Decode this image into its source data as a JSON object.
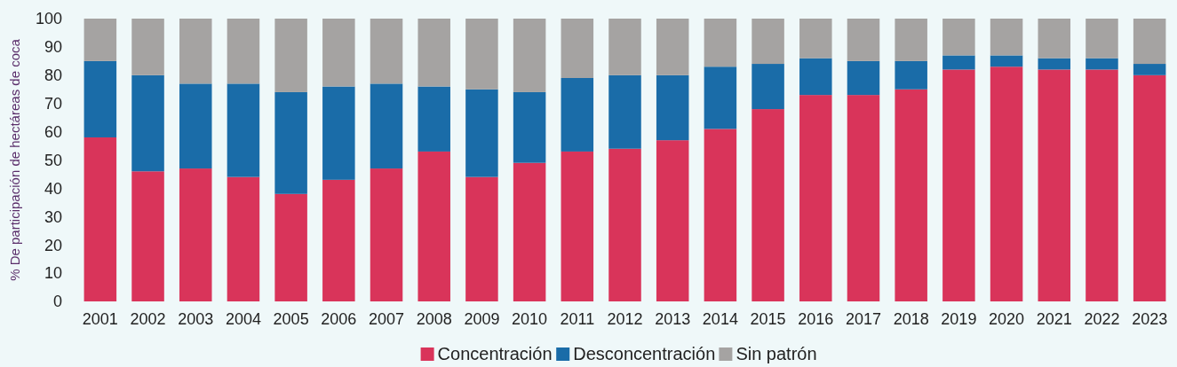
{
  "chart_data": {
    "type": "bar",
    "stacked": true,
    "ylabel": "% De participación de hectáreas de coca",
    "categories": [
      "2001",
      "2002",
      "2003",
      "2004",
      "2005",
      "2006",
      "2007",
      "2008",
      "2009",
      "2010",
      "2011",
      "2012",
      "2013",
      "2014",
      "2015",
      "2016",
      "2017",
      "2018",
      "2019",
      "2020",
      "2021",
      "2022",
      "2023"
    ],
    "series": [
      {
        "name": "Concentración",
        "color": "#d9345a",
        "values": [
          58,
          46,
          47,
          44,
          38,
          43,
          47,
          53,
          44,
          49,
          53,
          54,
          57,
          61,
          68,
          73,
          73,
          75,
          82,
          83,
          82,
          82,
          80
        ]
      },
      {
        "name": "Desconcentración",
        "color": "#1a6ca8",
        "values": [
          27,
          34,
          30,
          33,
          36,
          33,
          30,
          23,
          31,
          25,
          26,
          26,
          23,
          22,
          16,
          13,
          12,
          10,
          5,
          4,
          4,
          4,
          4
        ]
      },
      {
        "name": "Sin patrón",
        "color": "#a5a3a2",
        "values": [
          15,
          20,
          23,
          23,
          26,
          24,
          23,
          24,
          25,
          26,
          21,
          20,
          20,
          17,
          16,
          14,
          15,
          15,
          13,
          13,
          14,
          14,
          16
        ]
      }
    ],
    "ylim": [
      0,
      100
    ],
    "yticks": [
      0,
      10,
      20,
      30,
      40,
      50,
      60,
      70,
      80,
      90,
      100
    ],
    "grid": false,
    "legend": "bottom"
  }
}
